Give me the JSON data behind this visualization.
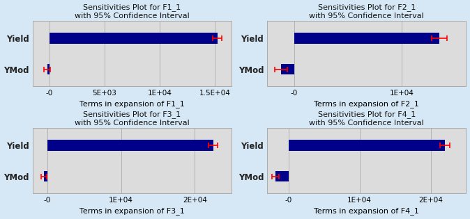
{
  "plots": [
    {
      "title": "Sensitivities Plot for F1_1\nwith 95% Confidence Interval",
      "xlabel": "Terms in expansion of F1_1",
      "bar_values": [
        15200,
        -200
      ],
      "bar_errors": [
        400,
        300
      ],
      "xlim": [
        -1500,
        16500
      ],
      "xticks": [
        0,
        5000,
        10000,
        15000
      ],
      "xticklabels": [
        "-0",
        "5E+03",
        "1E+04",
        "1.5E+04"
      ]
    },
    {
      "title": "Sensitivities Plot for F2_1\nwith 95% Confidence Interval",
      "xlabel": "Terms in expansion of F2_1",
      "bar_values": [
        13500,
        -1200
      ],
      "bar_errors": [
        700,
        600
      ],
      "xlim": [
        -2500,
        16000
      ],
      "xticks": [
        0,
        10000
      ],
      "xticklabels": [
        "-0",
        "1E+04"
      ]
    },
    {
      "title": "Sensitivities Plot for F3_1\nwith 95% Confidence Interval",
      "xlabel": "Terms in expansion of F3_1",
      "bar_values": [
        22500,
        -500
      ],
      "bar_errors": [
        600,
        400
      ],
      "xlim": [
        -2000,
        25000
      ],
      "xticks": [
        0,
        10000,
        20000
      ],
      "xticklabels": [
        "-0",
        "1E+04",
        "2E+04"
      ]
    },
    {
      "title": "Sensitivities Plot for F4_1\nwith 95% Confidence Interval",
      "xlabel": "Terms in expansion of F4_1",
      "bar_values": [
        22000,
        -1800
      ],
      "bar_errors": [
        700,
        500
      ],
      "xlim": [
        -3000,
        25000
      ],
      "xticks": [
        0,
        10000,
        20000
      ],
      "xticklabels": [
        "-0",
        "1E+04",
        "2E+04"
      ]
    }
  ],
  "categories": [
    "Yield",
    "YMod"
  ],
  "bar_color": "#00008B",
  "error_color": "#FF0000",
  "background_color": "#D6E8F5",
  "plot_bg_color": "#DCDCDC",
  "title_fontsize": 8,
  "label_fontsize": 8,
  "tick_fontsize": 7.5,
  "ylabel_fontsize": 8.5,
  "bar_height": 0.35
}
